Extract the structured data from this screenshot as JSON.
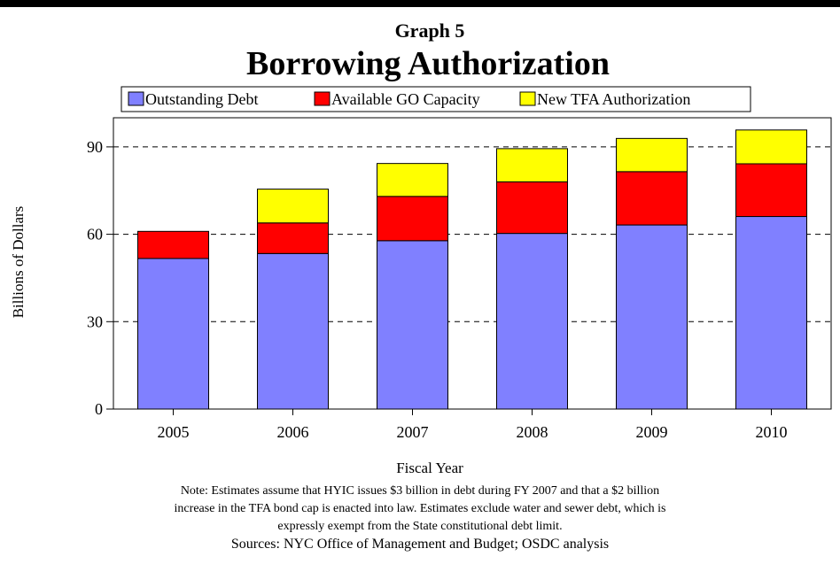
{
  "chart_data": {
    "type": "bar",
    "stacked": true,
    "subtitle": "Graph 5",
    "title": "Borrowing Authorization",
    "xlabel": "Fiscal Year",
    "ylabel": "Billions of Dollars",
    "categories": [
      "2005",
      "2006",
      "2007",
      "2008",
      "2009",
      "2010"
    ],
    "yticks": [
      0,
      30,
      60,
      90
    ],
    "ylim": [
      0,
      100
    ],
    "grid": "horizontal dashed",
    "legend_position": "top",
    "series": [
      {
        "name": "Outstanding Debt",
        "color": "#8080ff",
        "values": [
          51.7,
          53.4,
          57.8,
          60.3,
          63.2,
          66.1
        ]
      },
      {
        "name": "Available GO Capacity",
        "color": "#ff0000",
        "values": [
          9.3,
          10.5,
          15.2,
          17.7,
          18.3,
          18.1
        ]
      },
      {
        "name": "New TFA Authorization",
        "color": "#ffff00",
        "values": [
          0,
          11.6,
          11.3,
          11.4,
          11.4,
          11.6
        ]
      }
    ]
  },
  "notes": {
    "line1": "Note: Estimates assume that HYIC issues $3 billion in debt during FY 2007 and that a $2 billion",
    "line2": "increase in the TFA bond cap is enacted into law. Estimates exclude water and sewer debt, which is",
    "line3": "expressly exempt from the State constitutional debt limit.",
    "sources": "Sources: NYC Office of Management and Budget; OSDC analysis"
  }
}
